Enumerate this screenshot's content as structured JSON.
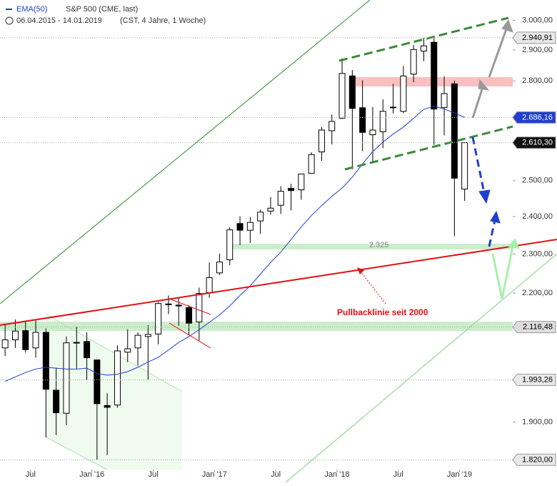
{
  "chart_data": {
    "type": "candlestick",
    "legend_label": "EMA(50)",
    "instrument": "S&P 500 (CME, last)",
    "date_range": "06.04.2015 - 14.01.2019",
    "settings_text": "(CST, 4 Jahre, 1 Woche)",
    "log_scale": true,
    "ylim": [
      1800,
      3070
    ],
    "yticks": [
      {
        "value": 3000,
        "label": "3.000,00"
      },
      {
        "value": 2900,
        "label": "2.900,00"
      },
      {
        "value": 2800,
        "label": "2.800,00"
      },
      {
        "value": 2500,
        "label": "2.500,00"
      },
      {
        "value": 2400,
        "label": "2.400,00"
      },
      {
        "value": 2300,
        "label": "2.300,00"
      },
      {
        "value": 2200,
        "label": "2.200,00"
      },
      {
        "value": 1900,
        "label": "1.900,00"
      }
    ],
    "xticks": [
      {
        "value": "2015-07",
        "label": "Jul"
      },
      {
        "value": "2016-01",
        "label": "Jan '16"
      },
      {
        "value": "2016-07",
        "label": "Jul"
      },
      {
        "value": "2017-01",
        "label": "Jan '17"
      },
      {
        "value": "2017-07",
        "label": "Jul"
      },
      {
        "value": "2018-01",
        "label": "Jan '18"
      },
      {
        "value": "2018-07",
        "label": "Jul"
      },
      {
        "value": "2019-01",
        "label": "Jan '19"
      }
    ],
    "x": [
      "2015-04",
      "2015-05",
      "2015-06",
      "2015-07",
      "2015-08",
      "2015-09",
      "2015-10",
      "2015-11",
      "2015-12",
      "2016-01",
      "2016-02",
      "2016-03",
      "2016-04",
      "2016-05",
      "2016-06",
      "2016-07",
      "2016-08",
      "2016-09",
      "2016-10",
      "2016-11",
      "2016-12",
      "2017-01",
      "2017-02",
      "2017-03",
      "2017-04",
      "2017-05",
      "2017-06",
      "2017-07",
      "2017-08",
      "2017-09",
      "2017-10",
      "2017-11",
      "2017-12",
      "2018-01",
      "2018-02",
      "2018-03",
      "2018-04",
      "2018-05",
      "2018-06",
      "2018-07",
      "2018-08",
      "2018-09",
      "2018-10",
      "2018-11",
      "2018-12",
      "2019-01"
    ],
    "open": [
      2067,
      2086,
      2108,
      2067,
      2104,
      1970,
      1919,
      2080,
      2082,
      2039,
      1936,
      1937,
      2057,
      2067,
      2094,
      2100,
      2173,
      2170,
      2164,
      2129,
      2201,
      2251,
      2285,
      2381,
      2363,
      2388,
      2415,
      2431,
      2478,
      2474,
      2521,
      2583,
      2646,
      2684,
      2816,
      2716,
      2634,
      2643,
      2718,
      2705,
      2822,
      2897,
      2926,
      2717,
      2791,
      2476
    ],
    "high": [
      2125,
      2135,
      2130,
      2133,
      2113,
      2021,
      2094,
      2117,
      2104,
      2039,
      1963,
      2073,
      2111,
      2104,
      2121,
      2178,
      2194,
      2188,
      2170,
      2214,
      2278,
      2301,
      2371,
      2401,
      2399,
      2419,
      2454,
      2484,
      2491,
      2520,
      2582,
      2657,
      2695,
      2873,
      2835,
      2802,
      2718,
      2742,
      2791,
      2848,
      2917,
      2940.91,
      2940,
      2815,
      2801,
      2610.3
    ],
    "low": [
      2048,
      2067,
      2056,
      2044,
      1867,
      1872,
      1893,
      2019,
      1993.26,
      1820,
      1830,
      1931,
      2034,
      2026,
      1992,
      2075,
      2148,
      2120,
      2098,
      2084,
      2188,
      2245,
      2271,
      2323,
      2329,
      2353,
      2405,
      2407,
      2417,
      2446,
      2520,
      2557,
      2605,
      2682,
      2533,
      2585,
      2553,
      2594,
      2699,
      2699,
      2796,
      2864,
      2604,
      2632,
      2347,
      2443
    ],
    "close": [
      2086,
      2107,
      2063,
      2104,
      1972,
      1920,
      2079,
      2080,
      2044,
      1940,
      1932,
      2060,
      2065,
      2097,
      2099,
      2174,
      2171,
      2168,
      2126,
      2199,
      2239,
      2279,
      2364,
      2363,
      2384,
      2412,
      2423,
      2470,
      2472,
      2519,
      2575,
      2648,
      2674,
      2824,
      2714,
      2641,
      2648,
      2705,
      2718,
      2816,
      2902,
      2914,
      2712,
      2760,
      2507,
      2610.3
    ],
    "ema": {
      "name": "EMA(50)",
      "color": "#1f3fd0",
      "values": [
        1990,
        2000,
        2010,
        2018,
        2022,
        2020,
        2018,
        2018,
        2020,
        2008,
        2004,
        2006,
        2012,
        2022,
        2034,
        2045,
        2062,
        2080,
        2094,
        2110,
        2128,
        2146,
        2168,
        2194,
        2218,
        2248,
        2278,
        2305,
        2338,
        2372,
        2403,
        2430,
        2456,
        2479,
        2510,
        2548,
        2584,
        2612,
        2636,
        2657,
        2684,
        2711,
        2721,
        2712,
        2700,
        2686.16
      ]
    },
    "up_color": "#ffffff",
    "down_color": "#000000",
    "price_labels": [
      {
        "value": 2940.91,
        "label": "2.940,91",
        "color": "#e8e8e8",
        "text_color": "#000000"
      },
      {
        "value": 2686.16,
        "label": "2.686,16",
        "color": "#1f3fd0",
        "text_color": "#ffffff"
      },
      {
        "value": 2610.3,
        "label": "2.610,30",
        "color": "#111111",
        "text_color": "#ffffff"
      },
      {
        "value": 2116.48,
        "label": "2.116,48",
        "color": "#dddddd",
        "text_color": "#000000"
      },
      {
        "value": 1993.26,
        "label": "1.993,26",
        "color": "#e8e8e8",
        "text_color": "#000000"
      },
      {
        "value": 1820,
        "label": "1.820,00",
        "color": "#e8e8e8",
        "text_color": "#000000"
      }
    ],
    "annotations": {
      "pullback": "Pullbacklinie seit 2000",
      "support": "2.325"
    }
  }
}
